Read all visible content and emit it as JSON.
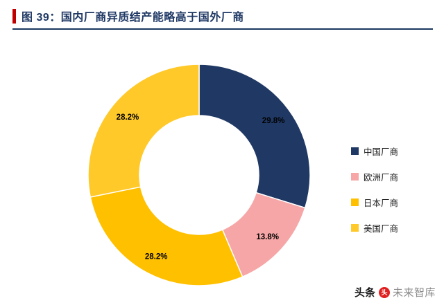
{
  "figure": {
    "label": "图 39：",
    "title": "国内厂商异质结产能略高于国外厂商"
  },
  "chart_data": {
    "type": "pie",
    "donut": true,
    "start_angle_deg": 0,
    "direction": "clockwise",
    "title": "国内厂商异质结产能略高于国外厂商",
    "legend_position": "right",
    "inner_radius_ratio": 0.54,
    "slices": [
      {
        "label": "中国厂商",
        "value": 29.8,
        "display": "29.8%",
        "color": "#1F3864"
      },
      {
        "label": "欧洲厂商",
        "value": 13.8,
        "display": "13.8%",
        "color": "#F6A6A6"
      },
      {
        "label": "日本厂商",
        "value": 28.2,
        "display": "28.2%",
        "color": "#FFC000"
      },
      {
        "label": "美国厂商",
        "value": 28.2,
        "display": "28.2%",
        "color": "#FFC929"
      }
    ]
  },
  "watermark": {
    "prefix": "头条",
    "logo_glyph": "头",
    "handle": "未来智库",
    "logo_color": "#E02020"
  },
  "theme": {
    "title_color": "#1F3864",
    "accent_bar_color": "#C00000",
    "divider_color": "#17375E",
    "slice_label_color": "#000000",
    "slice_stroke_color": "#FFFFFF"
  }
}
